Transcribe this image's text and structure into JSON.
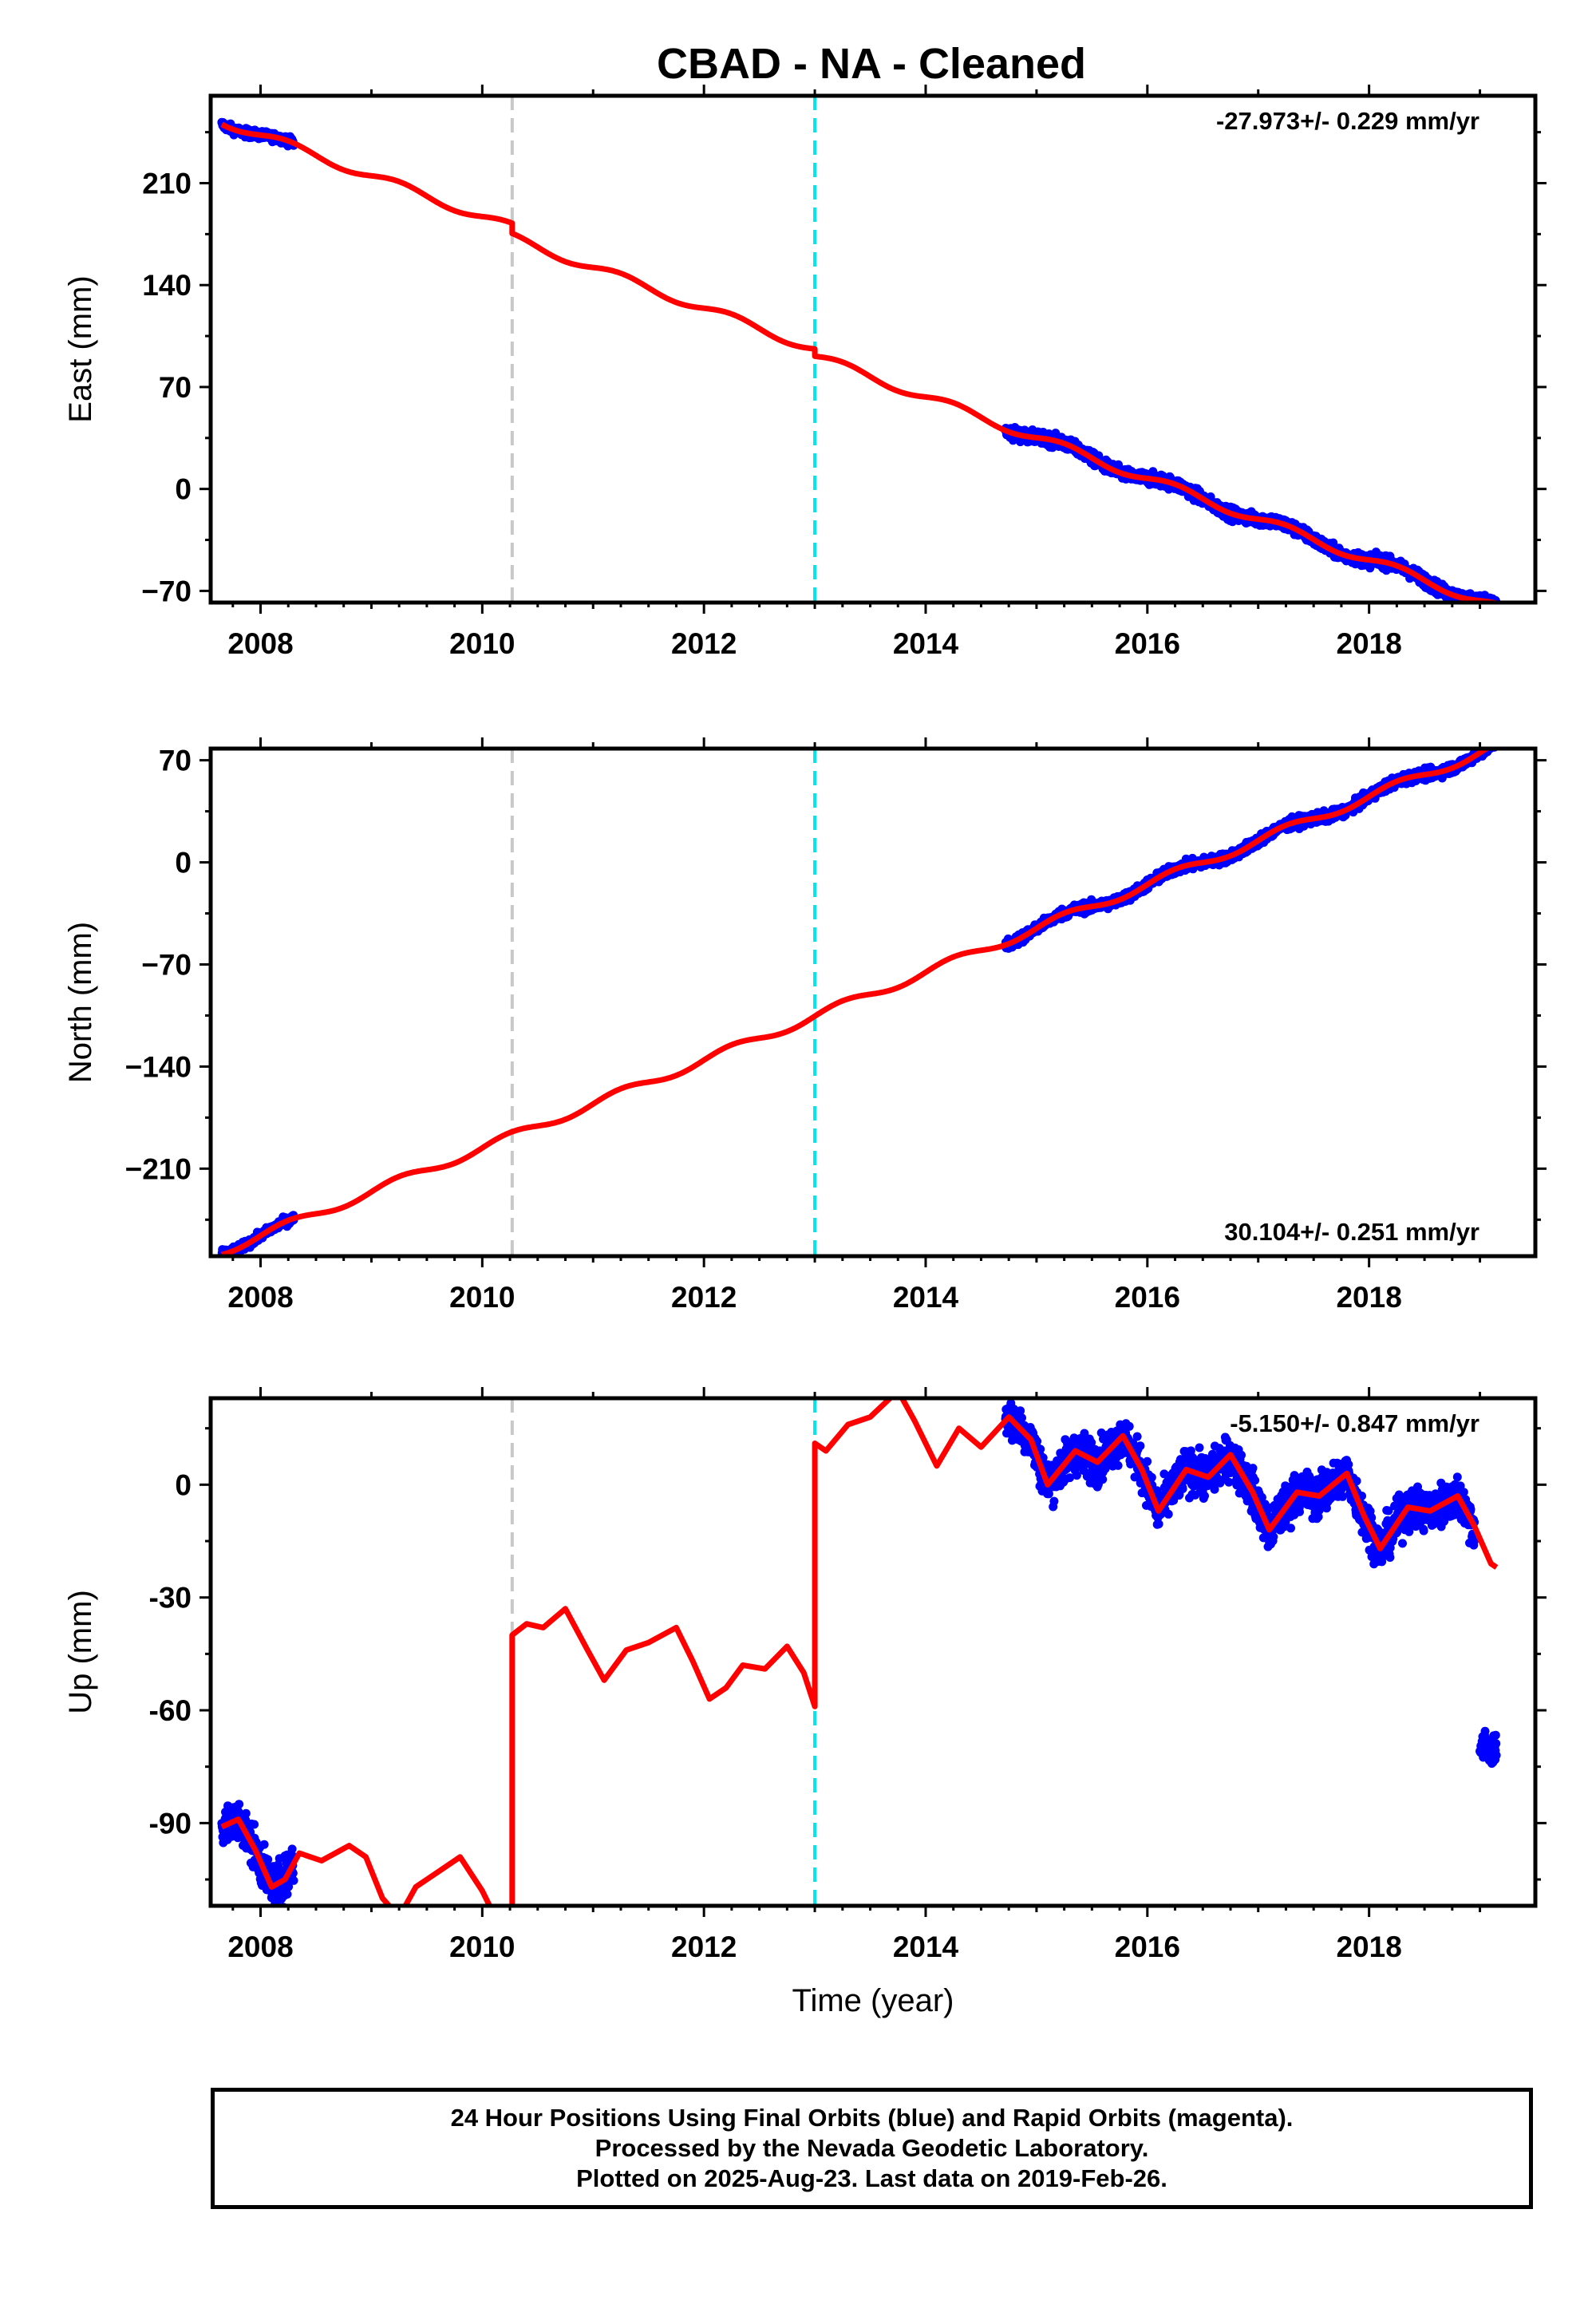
{
  "title": "CBAD  - NA - Cleaned",
  "colors": {
    "final_orbits": "#0000ff",
    "model_fit": "#ff0000",
    "event_gray": "#c8c8c8",
    "event_cyan": "#00e5ee"
  },
  "chart_data": [
    {
      "type": "scatter",
      "component": "East",
      "ylabel": "East (mm)",
      "xlabel": "",
      "xlim": [
        2007.55,
        2019.5
      ],
      "ylim": [
        -78,
        270
      ],
      "yticks": [
        -70,
        0,
        70,
        140,
        210
      ],
      "ytick_labels": [
        "−70",
        "0",
        "70",
        "140",
        "210"
      ],
      "xticks": [
        2008,
        2010,
        2012,
        2014,
        2016,
        2018
      ],
      "xtick_labels": [
        "2008",
        "2010",
        "2012",
        "2014",
        "2016",
        "2018"
      ],
      "rate_label": "-27.973+/- 0.229 mm/yr",
      "rate_position": "top-right",
      "event_lines": [
        {
          "x": 2010.27,
          "color": "gray"
        },
        {
          "x": 2013.0,
          "color": "cyan"
        }
      ],
      "fit": {
        "rate": -27.973,
        "intercept_at_2008": 243,
        "offsets": [
          {
            "year": 2010.27,
            "delta": -7
          },
          {
            "year": 2013.0,
            "delta": -5
          }
        ],
        "seasonal_amplitude": 3
      },
      "observation_segments": [
        {
          "start": 2007.65,
          "end": 2008.3,
          "scatter": 2
        },
        {
          "start": 2014.72,
          "end": 2019.15,
          "scatter": 3
        }
      ]
    },
    {
      "type": "scatter",
      "component": "North",
      "ylabel": "North (mm)",
      "xlabel": "",
      "xlim": [
        2007.55,
        2019.5
      ],
      "ylim": [
        -270,
        78
      ],
      "yticks": [
        -210,
        -140,
        -70,
        0,
        70
      ],
      "ytick_labels": [
        "−210",
        "−140",
        "−70",
        "0",
        "70"
      ],
      "xticks": [
        2008,
        2010,
        2012,
        2014,
        2016,
        2018
      ],
      "xtick_labels": [
        "2008",
        "2010",
        "2012",
        "2014",
        "2016",
        "2018"
      ],
      "rate_label": "30.104+/- 0.251 mm/yr",
      "rate_position": "bottom-right",
      "event_lines": [
        {
          "x": 2010.27,
          "color": "gray"
        },
        {
          "x": 2013.0,
          "color": "cyan"
        }
      ],
      "fit": {
        "rate": 30.104,
        "intercept_at_2008": -256,
        "offsets": [],
        "seasonal_amplitude": 3
      },
      "observation_segments": [
        {
          "start": 2007.65,
          "end": 2008.3,
          "scatter": 2
        },
        {
          "start": 2014.72,
          "end": 2019.15,
          "scatter": 2.5
        }
      ]
    },
    {
      "type": "scatter",
      "component": "Up",
      "ylabel": "Up (mm)",
      "xlabel": "Time (year)",
      "xlim": [
        2007.55,
        2019.5
      ],
      "ylim": [
        -112,
        23
      ],
      "yticks": [
        -90,
        -60,
        -30,
        0
      ],
      "ytick_labels": [
        "-90",
        "-60",
        "-30",
        "0"
      ],
      "xticks": [
        2008,
        2010,
        2012,
        2014,
        2016,
        2018
      ],
      "xtick_labels": [
        "2008",
        "2010",
        "2012",
        "2014",
        "2016",
        "2018"
      ],
      "rate_label": "-5.150+/- 0.847 mm/yr",
      "rate_position": "top-right",
      "event_lines": [
        {
          "x": 2010.27,
          "color": "gray"
        },
        {
          "x": 2013.0,
          "color": "cyan"
        }
      ],
      "fit_curve": [
        [
          2007.65,
          -91
        ],
        [
          2007.8,
          -89
        ],
        [
          2007.95,
          -97
        ],
        [
          2008.1,
          -107
        ],
        [
          2008.22,
          -105
        ],
        [
          2008.35,
          -98
        ],
        [
          2008.55,
          -100
        ],
        [
          2008.8,
          -96
        ],
        [
          2008.95,
          -99
        ],
        [
          2009.1,
          -110
        ],
        [
          2009.25,
          -115
        ],
        [
          2009.4,
          -107
        ],
        [
          2009.6,
          -103
        ],
        [
          2009.8,
          -99
        ],
        [
          2010.0,
          -108
        ],
        [
          2010.2,
          -120
        ],
        [
          2010.27,
          -125
        ],
        [
          2010.27,
          -40
        ],
        [
          2010.4,
          -37
        ],
        [
          2010.55,
          -38
        ],
        [
          2010.75,
          -33
        ],
        [
          2010.95,
          -44
        ],
        [
          2011.1,
          -52
        ],
        [
          2011.3,
          -44
        ],
        [
          2011.5,
          -42
        ],
        [
          2011.75,
          -38
        ],
        [
          2011.9,
          -47
        ],
        [
          2012.05,
          -57
        ],
        [
          2012.2,
          -54
        ],
        [
          2012.35,
          -48
        ],
        [
          2012.55,
          -49
        ],
        [
          2012.75,
          -43
        ],
        [
          2012.9,
          -50
        ],
        [
          2013.0,
          -59
        ],
        [
          2013.0,
          11
        ],
        [
          2013.1,
          9
        ],
        [
          2013.3,
          16
        ],
        [
          2013.5,
          18
        ],
        [
          2013.75,
          25
        ],
        [
          2013.9,
          17
        ],
        [
          2014.1,
          5
        ],
        [
          2014.3,
          15
        ],
        [
          2014.5,
          10
        ],
        [
          2014.75,
          18
        ],
        [
          2014.95,
          12
        ],
        [
          2015.1,
          0
        ],
        [
          2015.35,
          9
        ],
        [
          2015.55,
          6
        ],
        [
          2015.78,
          13
        ],
        [
          2015.95,
          4
        ],
        [
          2016.1,
          -7
        ],
        [
          2016.35,
          4
        ],
        [
          2016.55,
          2
        ],
        [
          2016.75,
          8
        ],
        [
          2016.95,
          -2
        ],
        [
          2017.1,
          -12
        ],
        [
          2017.35,
          -2
        ],
        [
          2017.55,
          -3
        ],
        [
          2017.8,
          3
        ],
        [
          2017.95,
          -8
        ],
        [
          2018.1,
          -17
        ],
        [
          2018.35,
          -6
        ],
        [
          2018.55,
          -7
        ],
        [
          2018.8,
          -3
        ],
        [
          2018.95,
          -11
        ],
        [
          2019.1,
          -21
        ],
        [
          2019.15,
          -22
        ]
      ],
      "observation_segments": [
        {
          "start": 2007.65,
          "end": 2008.3,
          "scatter": 4
        },
        {
          "start": 2014.72,
          "end": 2018.95,
          "scatter": 4
        },
        {
          "start": 2019.0,
          "end": 2019.15,
          "scatter": 3,
          "level": -70
        }
      ]
    }
  ],
  "footer": {
    "line1": "24 Hour Positions Using Final Orbits (blue) and Rapid Orbits (magenta).",
    "line2": "Processed by the Nevada Geodetic Laboratory.",
    "line3": "Plotted on 2025-Aug-23. Last data on 2019-Feb-26."
  }
}
